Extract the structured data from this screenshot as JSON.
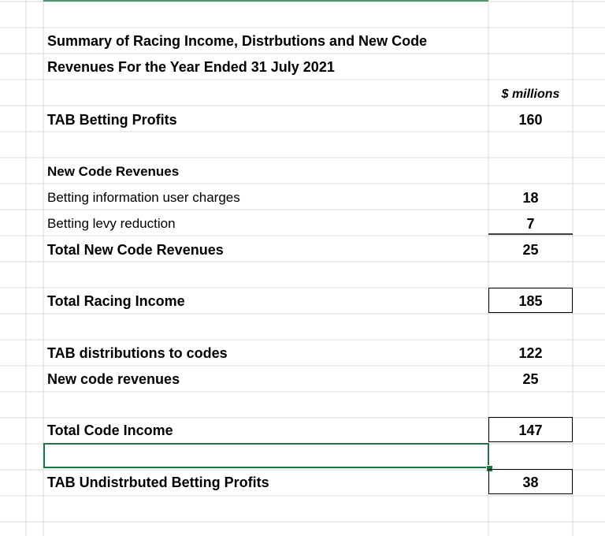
{
  "sheet": {
    "title_line1": "Summary of Racing Income, Distrbutions and New Code",
    "title_line2": "Revenues For the Year Ended 31 July 2021",
    "unit_header": "$ millions",
    "rows": [
      {
        "label": "TAB Betting Profits",
        "value": "160"
      },
      {
        "label": "New Code Revenues"
      },
      {
        "label": "Betting information user charges",
        "value": "18"
      },
      {
        "label": "Betting levy reduction",
        "value": "7"
      },
      {
        "label": "Total New Code Revenues",
        "value": "25"
      },
      {
        "label": "Total Racing Income",
        "value": "185"
      },
      {
        "label": "TAB distributions to codes",
        "value": "122"
      },
      {
        "label": "New code revenues",
        "value": "25"
      },
      {
        "label": "Total Code Income",
        "value": "147"
      },
      {
        "label": "TAB Undistrbuted Betting Profits",
        "value": "38"
      }
    ]
  },
  "colors": {
    "gridline": "#d9d9d9",
    "selection": "#217346"
  }
}
